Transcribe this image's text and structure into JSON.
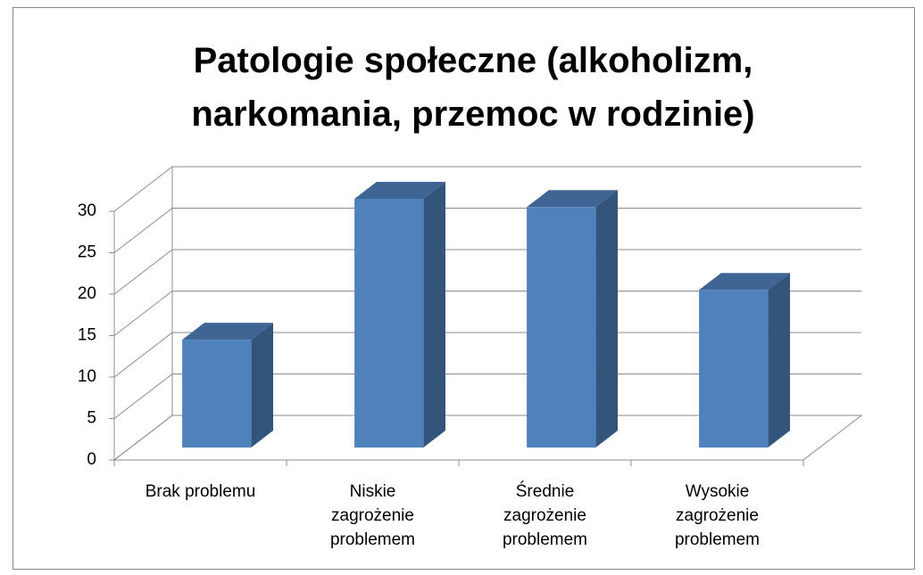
{
  "chart_data": {
    "type": "bar3d",
    "title": "Patologie społeczne (alkoholizm, narkomania, przemoc w rodzinie)",
    "categories": [
      "Brak problemu",
      "Niskie zagrożenie problemem",
      "Średnie zagrożenie problemem",
      "Wysokie zagrożenie problemem"
    ],
    "values": [
      13,
      30,
      29,
      19
    ],
    "color": "#4f81bd",
    "ylim": [
      0,
      30
    ],
    "yticks": [
      0,
      5,
      10,
      15,
      20,
      25,
      30
    ],
    "grid": true
  }
}
